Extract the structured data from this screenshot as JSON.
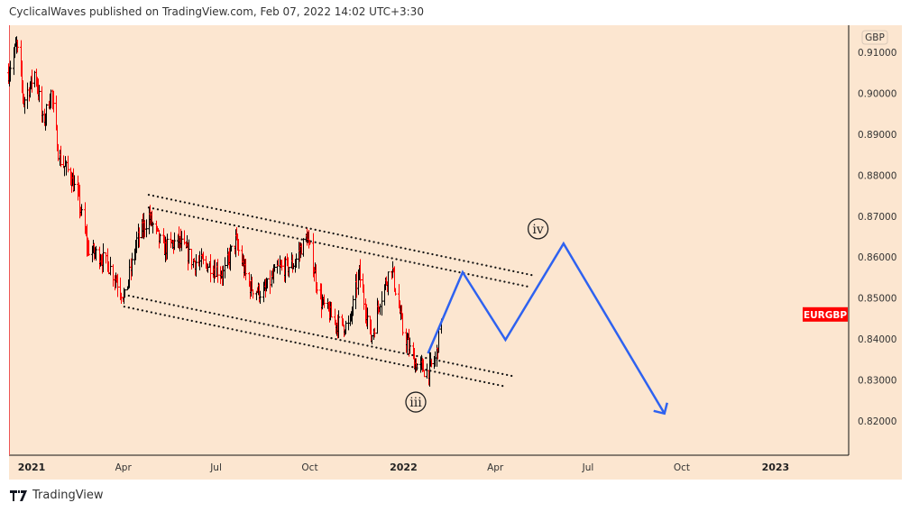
{
  "header": {
    "text": "CyclicalWaves published on TradingView.com, Feb 07, 2022 14:02 UTC+3:30"
  },
  "brand": {
    "text": "TradingView"
  },
  "chart_data": {
    "type": "ohlc",
    "symbol": "EURGBP",
    "currency": "GBP",
    "last_price_tag": "EURGBP",
    "last_price": 0.846,
    "colors": {
      "background": "#fce6d0",
      "up": "#000000",
      "down": "#ff0000",
      "projection": "#2e62f0",
      "tag": "#ff0000"
    },
    "ylim": [
      0.8125,
      0.9155
    ],
    "y_ticks": [
      "0.91000",
      "0.90000",
      "0.89000",
      "0.88000",
      "0.87000",
      "0.86000",
      "0.85000",
      "0.84000",
      "0.83000",
      "0.82000"
    ],
    "x_ticks": [
      {
        "label": "2021",
        "date": "2021-01-01"
      },
      {
        "label": "Apr",
        "date": "2021-04-01"
      },
      {
        "label": "Jul",
        "date": "2021-07-01"
      },
      {
        "label": "Oct",
        "date": "2021-10-01"
      },
      {
        "label": "2022",
        "date": "2022-01-01"
      },
      {
        "label": "Apr",
        "date": "2022-04-01"
      },
      {
        "label": "Jul",
        "date": "2022-07-01"
      },
      {
        "label": "Oct",
        "date": "2022-10-01"
      },
      {
        "label": "2023",
        "date": "2023-01-01"
      }
    ],
    "price_path": [
      [
        "2020-12-09",
        0.905
      ],
      [
        "2020-12-17",
        0.912
      ],
      [
        "2020-12-24",
        0.898
      ],
      [
        "2021-01-04",
        0.905
      ],
      [
        "2021-01-12",
        0.893
      ],
      [
        "2021-01-20",
        0.9
      ],
      [
        "2021-01-28",
        0.884
      ],
      [
        "2021-02-08",
        0.88
      ],
      [
        "2021-02-16",
        0.874
      ],
      [
        "2021-02-25",
        0.862
      ],
      [
        "2021-03-10",
        0.86
      ],
      [
        "2021-03-20",
        0.857
      ],
      [
        "2021-04-02",
        0.85
      ],
      [
        "2021-04-14",
        0.864
      ],
      [
        "2021-04-26",
        0.87
      ],
      [
        "2021-05-10",
        0.862
      ],
      [
        "2021-05-25",
        0.864
      ],
      [
        "2021-06-08",
        0.859
      ],
      [
        "2021-06-25",
        0.858
      ],
      [
        "2021-07-08",
        0.856
      ],
      [
        "2021-07-20",
        0.864
      ],
      [
        "2021-08-02",
        0.853
      ],
      [
        "2021-08-16",
        0.851
      ],
      [
        "2021-08-30",
        0.857
      ],
      [
        "2021-09-14",
        0.858
      ],
      [
        "2021-09-28",
        0.865
      ],
      [
        "2021-10-12",
        0.849
      ],
      [
        "2021-10-26",
        0.844
      ],
      [
        "2021-11-08",
        0.843
      ],
      [
        "2021-11-18",
        0.856
      ],
      [
        "2021-11-30",
        0.84
      ],
      [
        "2021-12-08",
        0.849
      ],
      [
        "2021-12-20",
        0.858
      ],
      [
        "2021-12-31",
        0.842
      ],
      [
        "2022-01-12",
        0.834
      ],
      [
        "2022-01-24",
        0.832
      ],
      [
        "2022-02-01",
        0.835
      ],
      [
        "2022-02-07",
        0.846
      ]
    ],
    "channel_lines": [
      [
        [
          "2021-04-26",
          0.8752
        ],
        [
          "2022-05-07",
          0.8556
        ]
      ],
      [
        [
          "2021-04-26",
          0.8721
        ],
        [
          "2022-05-03",
          0.8528
        ]
      ],
      [
        [
          "2021-04-02",
          0.8508
        ],
        [
          "2022-04-17",
          0.831
        ]
      ],
      [
        [
          "2021-04-02",
          0.8479
        ],
        [
          "2022-04-11",
          0.8284
        ]
      ]
    ],
    "projection_path": [
      [
        "2022-01-25",
        0.8365
      ],
      [
        "2022-02-28",
        0.8563
      ],
      [
        "2022-04-11",
        0.8398
      ],
      [
        "2022-06-07",
        0.8633
      ],
      [
        "2022-09-14",
        0.8218
      ]
    ],
    "wave_labels": [
      {
        "text": "iv",
        "date": "2022-05-13",
        "price": 0.8669
      },
      {
        "text": "iii",
        "date": "2022-01-13",
        "price": 0.8246
      }
    ]
  }
}
